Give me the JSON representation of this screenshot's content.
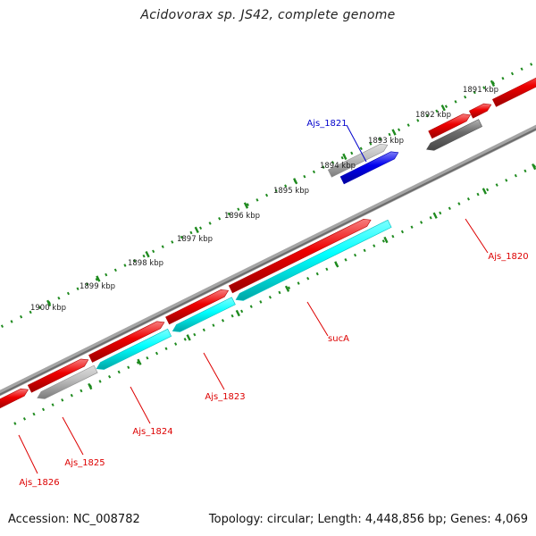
{
  "title": "Acidovorax sp. JS42, complete genome",
  "footer": {
    "accession": "Accession: NC_008782",
    "stats": "Topology: circular; Length: 4,448,856 bp; Genes: 4,069"
  },
  "colors": {
    "backbone": "#878787",
    "tick": "#1e8a1e",
    "forward_cds": "#ee0000",
    "reverse_cds": "#00ffff",
    "rna_light": "#bdbdbd",
    "rna_dark": "#6b6b6b",
    "highlight": "#0000ee",
    "label_red": "#dd0000",
    "label_blue": "#0000cc"
  },
  "scale": {
    "labels": [
      "1891 kbp",
      "1892 kbp",
      "1893 kbp",
      "1894 kbp",
      "1895 kbp",
      "1896 kbp",
      "1897 kbp",
      "1898 kbp",
      "1899 kbp",
      "1900 kbp"
    ]
  },
  "gene_labels": [
    {
      "name": "Ajs_1821",
      "color": "blue"
    },
    {
      "name": "Ajs_1820",
      "color": "red"
    },
    {
      "name": "sucA",
      "color": "red"
    },
    {
      "name": "Ajs_1823",
      "color": "red"
    },
    {
      "name": "Ajs_1824",
      "color": "red"
    },
    {
      "name": "Ajs_1825",
      "color": "red"
    },
    {
      "name": "Ajs_1826",
      "color": "red"
    }
  ]
}
